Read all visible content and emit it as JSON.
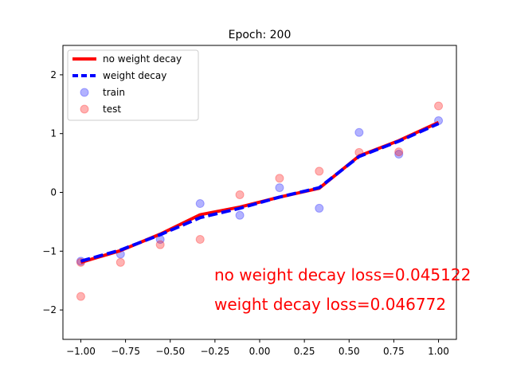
{
  "chart_data": {
    "type": "scatter",
    "title": "Epoch: 200",
    "xlabel": "",
    "ylabel": "",
    "xlim": [
      -1.1,
      1.1
    ],
    "ylim": [
      -2.5,
      2.5
    ],
    "x_ticks": [
      -1.0,
      -0.75,
      -0.5,
      -0.25,
      0.0,
      0.25,
      0.5,
      0.75,
      1.0
    ],
    "x_tick_labels": [
      "−1.00",
      "−0.75",
      "−0.50",
      "−0.25",
      "0.00",
      "0.25",
      "0.50",
      "0.75",
      "1.00"
    ],
    "y_ticks": [
      -2,
      -1,
      0,
      1,
      2
    ],
    "y_tick_labels": [
      "−2",
      "−1",
      "0",
      "1",
      "2"
    ],
    "grid": false,
    "legend_position": "top-left",
    "lines": [
      {
        "name": "no weight decay",
        "color": "#ff0000",
        "style": "solid",
        "x": [
          -1.0,
          -0.778,
          -0.556,
          -0.333,
          -0.111,
          0.111,
          0.333,
          0.556,
          0.778,
          1.0
        ],
        "y": [
          -1.19,
          -0.99,
          -0.71,
          -0.38,
          -0.25,
          -0.08,
          0.07,
          0.62,
          0.88,
          1.19
        ]
      },
      {
        "name": "weight decay",
        "color": "#0000ff",
        "style": "dashed",
        "x": [
          -1.0,
          -0.778,
          -0.556,
          -0.333,
          -0.111,
          0.111,
          0.333,
          0.556,
          0.778,
          1.0
        ],
        "y": [
          -1.17,
          -0.98,
          -0.72,
          -0.43,
          -0.27,
          -0.08,
          0.08,
          0.61,
          0.87,
          1.17
        ]
      }
    ],
    "scatter": [
      {
        "name": "train",
        "color": "#0000ff",
        "x": [
          -1.0,
          -0.778,
          -0.556,
          -0.333,
          -0.111,
          0.111,
          0.333,
          0.556,
          0.778,
          1.0
        ],
        "y": [
          -1.17,
          -1.05,
          -0.8,
          -0.19,
          -0.39,
          0.08,
          -0.27,
          1.02,
          0.65,
          1.22
        ]
      },
      {
        "name": "test",
        "color": "#ff0000",
        "x": [
          -1.0,
          -1.0,
          -0.778,
          -0.556,
          -0.333,
          -0.111,
          0.111,
          0.333,
          0.556,
          0.778,
          1.0
        ],
        "y": [
          -1.77,
          -1.19,
          -1.19,
          -0.89,
          -0.8,
          -0.04,
          0.24,
          0.36,
          0.68,
          0.69,
          1.47
        ]
      }
    ],
    "annotations": [
      {
        "text": "no weight decay loss=0.045122",
        "color": "#ff0000"
      },
      {
        "text": "weight decay loss=0.046772",
        "color": "#ff0000"
      }
    ]
  }
}
